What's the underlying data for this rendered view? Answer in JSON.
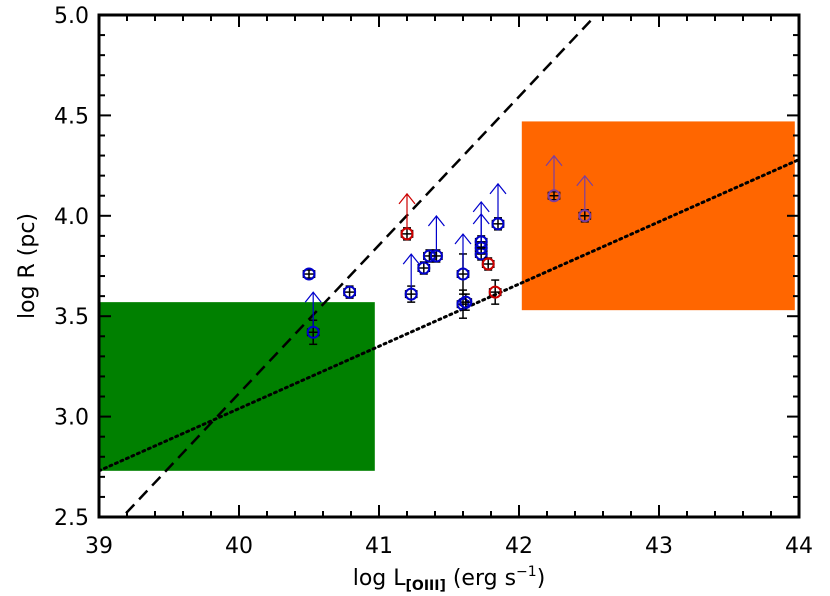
{
  "chart_data": {
    "type": "scatter",
    "title": "",
    "xlabel": {
      "main": "log L",
      "sub": "[OIII]",
      "tail": " (erg s",
      "sup": "−1",
      "close": ")"
    },
    "ylabel": "log R (pc)",
    "xlim": [
      39,
      44
    ],
    "ylim": [
      2.5,
      5.0
    ],
    "xticks": [
      39,
      40,
      41,
      42,
      43,
      44
    ],
    "xtick_labels": [
      "39",
      "40",
      "41",
      "42",
      "43",
      "44"
    ],
    "yticks": [
      2.5,
      3.0,
      3.5,
      4.0,
      4.5,
      5.0
    ],
    "ytick_labels": [
      "2.5",
      "3.0",
      "3.5",
      "4.0",
      "4.5",
      "5.0"
    ],
    "grid": false,
    "regions": [
      {
        "name": "green",
        "x": [
          39.0,
          40.97
        ],
        "y": [
          2.73,
          3.57
        ],
        "color": "#008000"
      },
      {
        "name": "orange",
        "x": [
          42.02,
          43.97
        ],
        "y": [
          3.53,
          4.47
        ],
        "color": "#ff6600"
      }
    ],
    "lines": [
      {
        "style": "dashed",
        "points": [
          [
            39.1,
            2.45
          ],
          [
            42.55,
            5.0
          ]
        ]
      },
      {
        "style": "dotted",
        "points": [
          [
            39.0,
            2.73
          ],
          [
            44.0,
            4.28
          ]
        ]
      }
    ],
    "series": [
      {
        "color": "#0000cc",
        "points": [
          {
            "x": 40.5,
            "y": 3.71,
            "xerr": 0.04,
            "yerr": 0.02,
            "lower_limit": false
          },
          {
            "x": 40.53,
            "y": 3.42,
            "xerr": 0.04,
            "yerr": 0.06,
            "lower_limit": true
          },
          {
            "x": 40.79,
            "y": 3.62,
            "xerr": 0.04,
            "yerr": 0.03,
            "lower_limit": false
          },
          {
            "x": 41.23,
            "y": 3.61,
            "xerr": 0.04,
            "yerr": 0.04,
            "lower_limit": true
          },
          {
            "x": 41.32,
            "y": 3.74,
            "xerr": 0.04,
            "yerr": 0.03,
            "lower_limit": false
          },
          {
            "x": 41.36,
            "y": 3.8,
            "xerr": 0.04,
            "yerr": 0.03,
            "lower_limit": false
          },
          {
            "x": 41.41,
            "y": 3.8,
            "xerr": 0.04,
            "yerr": 0.03,
            "lower_limit": true
          },
          {
            "x": 41.6,
            "y": 3.71,
            "xerr": 0.04,
            "yerr": 0.1,
            "lower_limit": true
          },
          {
            "x": 41.6,
            "y": 3.56,
            "xerr": 0.04,
            "yerr": 0.07,
            "lower_limit": false
          },
          {
            "x": 41.62,
            "y": 3.57,
            "xerr": 0.04,
            "yerr": 0.04,
            "lower_limit": false
          },
          {
            "x": 41.73,
            "y": 3.87,
            "xerr": 0.04,
            "yerr": 0.03,
            "lower_limit": true
          },
          {
            "x": 41.73,
            "y": 3.81,
            "xerr": 0.04,
            "yerr": 0.03,
            "lower_limit": true
          },
          {
            "x": 41.73,
            "y": 3.84,
            "xerr": 0.04,
            "yerr": 0.03,
            "lower_limit": false
          },
          {
            "x": 41.85,
            "y": 3.96,
            "xerr": 0.04,
            "yerr": 0.03,
            "lower_limit": true
          }
        ]
      },
      {
        "color": "#cc0000",
        "points": [
          {
            "x": 41.2,
            "y": 3.91,
            "xerr": 0.04,
            "yerr": 0.03,
            "lower_limit": true
          },
          {
            "x": 41.78,
            "y": 3.76,
            "xerr": 0.04,
            "yerr": 0.03,
            "lower_limit": false
          },
          {
            "x": 41.83,
            "y": 3.62,
            "xerr": 0.04,
            "yerr": 0.06,
            "lower_limit": false
          }
        ]
      },
      {
        "color": "#7a3fa0",
        "points": [
          {
            "x": 42.25,
            "y": 4.1,
            "xerr": 0.04,
            "yerr": 0.02,
            "lower_limit": true
          },
          {
            "x": 42.47,
            "y": 4.0,
            "xerr": 0.04,
            "yerr": 0.03,
            "lower_limit": true
          }
        ]
      }
    ]
  }
}
